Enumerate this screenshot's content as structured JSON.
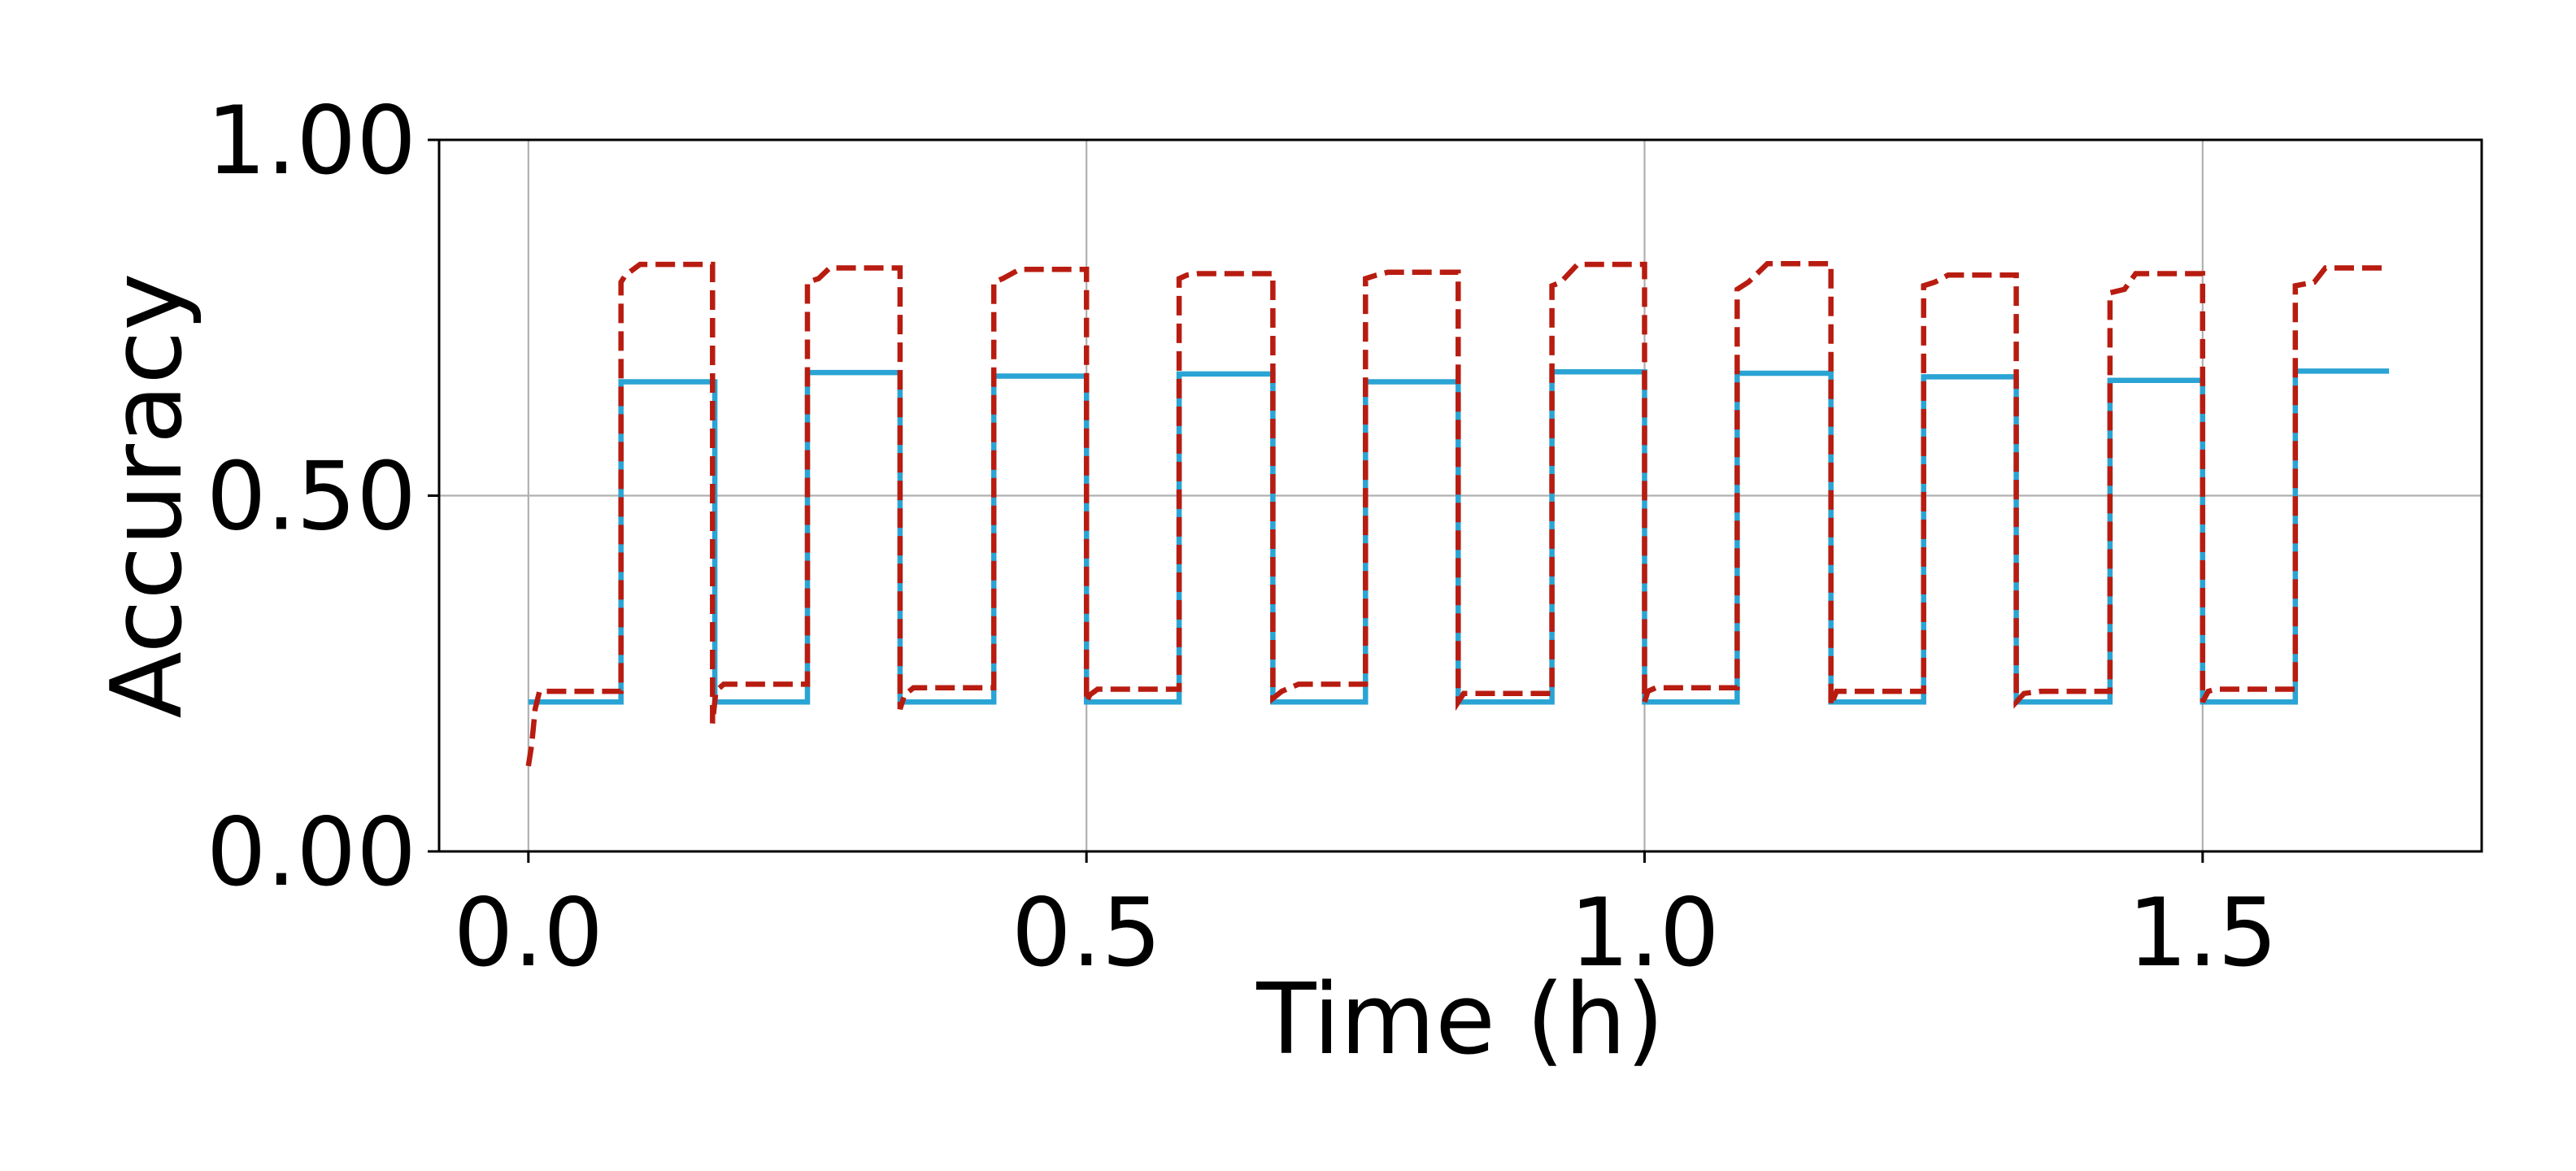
{
  "chart_data": {
    "type": "line",
    "title": "",
    "xlabel": "Time (h)",
    "ylabel": "Accuracy",
    "xlim": [
      -0.08,
      1.75
    ],
    "ylim": [
      0.0,
      1.0
    ],
    "xticks": [
      0.0,
      0.5,
      1.0,
      1.5
    ],
    "xtick_labels": [
      "0.0",
      "0.5",
      "1.0",
      "1.5"
    ],
    "yticks": [
      0.0,
      0.5,
      1.0
    ],
    "ytick_labels": [
      "0.00",
      "0.50",
      "1.00"
    ],
    "grid": true,
    "colors": {
      "solid": "#2aa4d4",
      "dashed": "#b81c10"
    },
    "series": [
      {
        "style": "solid",
        "x": [
          0.0,
          0.083,
          0.083,
          0.167,
          0.167,
          0.25,
          0.25,
          0.333,
          0.333,
          0.417,
          0.417,
          0.5,
          0.5,
          0.583,
          0.583,
          0.667,
          0.667,
          0.75,
          0.75,
          0.833,
          0.833,
          0.917,
          0.917,
          1.0,
          1.0,
          1.083,
          1.083,
          1.167,
          1.167,
          1.25,
          1.25,
          1.333,
          1.333,
          1.417,
          1.417,
          1.5,
          1.5,
          1.583,
          1.583,
          1.667
        ],
        "y": [
          0.21,
          0.21,
          0.66,
          0.66,
          0.21,
          0.21,
          0.673,
          0.673,
          0.21,
          0.21,
          0.668,
          0.668,
          0.21,
          0.21,
          0.671,
          0.671,
          0.21,
          0.21,
          0.66,
          0.66,
          0.21,
          0.21,
          0.674,
          0.674,
          0.21,
          0.21,
          0.672,
          0.672,
          0.21,
          0.21,
          0.667,
          0.667,
          0.21,
          0.21,
          0.662,
          0.662,
          0.21,
          0.21,
          0.675,
          0.675
        ]
      },
      {
        "style": "dashed",
        "x": [
          0.0,
          0.003,
          0.006,
          0.01,
          0.083,
          0.083,
          0.087,
          0.1,
          0.165,
          0.165,
          0.168,
          0.175,
          0.25,
          0.25,
          0.26,
          0.27,
          0.333,
          0.333,
          0.337,
          0.345,
          0.417,
          0.417,
          0.425,
          0.44,
          0.5,
          0.5,
          0.503,
          0.51,
          0.583,
          0.583,
          0.59,
          0.6,
          0.667,
          0.667,
          0.675,
          0.69,
          0.75,
          0.75,
          0.76,
          0.77,
          0.833,
          0.833,
          0.838,
          0.85,
          0.917,
          0.917,
          0.925,
          0.94,
          1.0,
          1.0,
          1.003,
          1.01,
          1.083,
          1.083,
          1.093,
          1.11,
          1.167,
          1.167,
          1.172,
          1.18,
          1.25,
          1.25,
          1.26,
          1.272,
          1.333,
          1.333,
          1.34,
          1.355,
          1.417,
          1.417,
          1.43,
          1.44,
          1.5,
          1.5,
          1.505,
          1.512,
          1.583,
          1.583,
          1.6,
          1.61,
          1.667
        ],
        "y": [
          0.12,
          0.15,
          0.2,
          0.225,
          0.225,
          0.8,
          0.81,
          0.825,
          0.825,
          0.18,
          0.225,
          0.235,
          0.235,
          0.8,
          0.805,
          0.82,
          0.82,
          0.2,
          0.22,
          0.23,
          0.23,
          0.8,
          0.805,
          0.818,
          0.818,
          0.21,
          0.22,
          0.228,
          0.228,
          0.805,
          0.81,
          0.812,
          0.812,
          0.215,
          0.225,
          0.235,
          0.235,
          0.805,
          0.81,
          0.814,
          0.814,
          0.21,
          0.222,
          0.222,
          0.222,
          0.795,
          0.8,
          0.825,
          0.825,
          0.21,
          0.225,
          0.23,
          0.23,
          0.79,
          0.8,
          0.826,
          0.826,
          0.205,
          0.225,
          0.225,
          0.225,
          0.795,
          0.8,
          0.81,
          0.81,
          0.21,
          0.222,
          0.225,
          0.225,
          0.785,
          0.79,
          0.812,
          0.812,
          0.21,
          0.225,
          0.228,
          0.228,
          0.795,
          0.8,
          0.82,
          0.82
        ]
      }
    ]
  }
}
